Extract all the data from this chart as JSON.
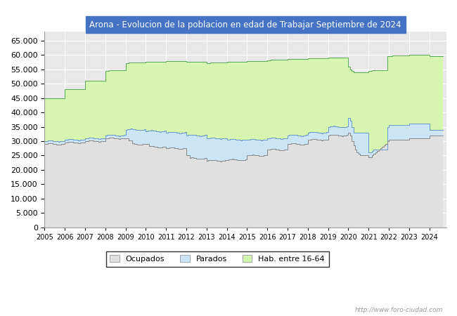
{
  "title": "Arona - Evolucion de la poblacion en edad de Trabajar Septiembre de 2024",
  "title_bg": "#4472c4",
  "title_color": "white",
  "ylim": [
    0,
    68000
  ],
  "yticks": [
    0,
    5000,
    10000,
    15000,
    20000,
    25000,
    30000,
    35000,
    40000,
    45000,
    50000,
    55000,
    60000,
    65000
  ],
  "color_hab": "#d6f5b0",
  "color_parados": "#cce5f5",
  "color_ocupados": "#e0e0e0",
  "color_line_hab": "#55aa55",
  "color_line_parados": "#6699cc",
  "color_line_ocupados": "#888888",
  "plot_bg": "#e8e8e8",
  "grid_color": "#ffffff",
  "legend_labels": [
    "Ocupados",
    "Parados",
    "Hab. entre 16-64"
  ],
  "watermark": "http://www.foro-ciudad.com",
  "hab_16_64": [
    44800,
    44800,
    44900,
    44900,
    44900,
    44900,
    44900,
    44900,
    44900,
    44900,
    44900,
    44900,
    48000,
    48000,
    48100,
    48100,
    48100,
    48100,
    48100,
    48100,
    48100,
    48100,
    48100,
    48100,
    51000,
    51000,
    51100,
    51100,
    51100,
    51100,
    51100,
    51100,
    51100,
    51100,
    51100,
    51100,
    54500,
    54500,
    54600,
    54600,
    54600,
    54600,
    54600,
    54600,
    54600,
    54600,
    54600,
    54600,
    57200,
    57200,
    57300,
    57300,
    57300,
    57300,
    57300,
    57300,
    57300,
    57300,
    57300,
    57300,
    57500,
    57500,
    57600,
    57600,
    57600,
    57600,
    57600,
    57600,
    57600,
    57600,
    57600,
    57600,
    57800,
    57800,
    57900,
    57900,
    57900,
    57900,
    57900,
    57900,
    57900,
    57900,
    57900,
    57900,
    57500,
    57500,
    57600,
    57600,
    57600,
    57600,
    57600,
    57600,
    57600,
    57600,
    57600,
    57600,
    57200,
    57200,
    57300,
    57300,
    57300,
    57300,
    57300,
    57300,
    57300,
    57300,
    57300,
    57300,
    57500,
    57500,
    57600,
    57600,
    57600,
    57600,
    57600,
    57600,
    57600,
    57600,
    57600,
    57600,
    57800,
    57800,
    57900,
    57900,
    57900,
    57900,
    57900,
    57900,
    57900,
    57900,
    57900,
    57900,
    58200,
    58200,
    58300,
    58300,
    58300,
    58300,
    58300,
    58300,
    58300,
    58300,
    58300,
    58300,
    58500,
    58500,
    58600,
    58600,
    58600,
    58600,
    58600,
    58600,
    58600,
    58600,
    58600,
    58600,
    58800,
    58800,
    58900,
    58900,
    58900,
    58900,
    58900,
    58900,
    58900,
    58900,
    58900,
    58900,
    59000,
    59000,
    59100,
    59100,
    59100,
    59100,
    59100,
    59100,
    59100,
    59100,
    59100,
    59100,
    56000,
    55000,
    54500,
    54000,
    54000,
    54000,
    54000,
    54000,
    54000,
    54000,
    54000,
    54000,
    54500,
    54500,
    54600,
    54600,
    54600,
    54600,
    54600,
    54600,
    54600,
    54600,
    54600,
    59500,
    59600,
    59600,
    59700,
    59700,
    59700,
    59700,
    59700,
    59700,
    59700,
    59700,
    59700,
    59700,
    60000,
    60000,
    60100,
    60100,
    60100,
    60100,
    60100,
    60100,
    60100,
    60100,
    60100,
    60100,
    59500,
    59500,
    59600,
    59600,
    59600,
    59600,
    59600,
    59600,
    59600
  ],
  "parados": [
    30000,
    30100,
    30200,
    30300,
    30200,
    30100,
    30000,
    29900,
    29800,
    29900,
    30000,
    30100,
    30500,
    30600,
    30700,
    30800,
    30700,
    30600,
    30500,
    30400,
    30300,
    30400,
    30500,
    30600,
    31000,
    31100,
    31200,
    31300,
    31200,
    31100,
    31000,
    30900,
    30800,
    30900,
    31000,
    31100,
    32000,
    32100,
    32200,
    32300,
    32200,
    32100,
    32000,
    31900,
    31800,
    31900,
    32000,
    32100,
    34000,
    34100,
    34200,
    34300,
    34200,
    34100,
    34000,
    33900,
    33800,
    33900,
    34000,
    34100,
    33500,
    33600,
    33700,
    33800,
    33700,
    33600,
    33500,
    33400,
    33300,
    33400,
    33500,
    33600,
    33000,
    33100,
    33200,
    33300,
    33200,
    33100,
    33000,
    32900,
    32800,
    32900,
    33000,
    33100,
    32000,
    32100,
    32200,
    32300,
    32200,
    32100,
    32000,
    31900,
    31800,
    31900,
    32000,
    32100,
    31000,
    31100,
    31200,
    31300,
    31200,
    31100,
    31000,
    30900,
    30800,
    30900,
    31000,
    31100,
    30500,
    30600,
    30700,
    30800,
    30700,
    30600,
    30500,
    30400,
    30300,
    30400,
    30500,
    30600,
    30500,
    30600,
    30700,
    30800,
    30700,
    30600,
    30500,
    30400,
    30300,
    30400,
    30500,
    30600,
    31000,
    31100,
    31200,
    31300,
    31200,
    31100,
    31000,
    30900,
    30800,
    30900,
    31000,
    31100,
    32000,
    32100,
    32200,
    32300,
    32200,
    32100,
    32000,
    31900,
    31800,
    31900,
    32000,
    32100,
    33000,
    33100,
    33200,
    33300,
    33200,
    33100,
    33000,
    32900,
    32800,
    32900,
    33000,
    33100,
    35000,
    35100,
    35200,
    35300,
    35200,
    35100,
    35000,
    34900,
    34800,
    34900,
    35000,
    35100,
    38000,
    37000,
    35000,
    33000,
    33000,
    33000,
    33000,
    33000,
    33000,
    33000,
    33000,
    33000,
    26000,
    26000,
    26500,
    27000,
    27000,
    27000,
    27000,
    27000,
    27000,
    27000,
    27000,
    35000,
    35500,
    35500,
    35500,
    35500,
    35500,
    35500,
    35500,
    35500,
    35500,
    35500,
    35500,
    35500,
    36000,
    36000,
    36000,
    36000,
    36000,
    36000,
    36000,
    36000,
    36000,
    36000,
    36000,
    36000,
    34000,
    34000,
    34000,
    34000,
    34000,
    34000,
    34000,
    34000,
    34000
  ],
  "ocupados": [
    29000,
    29100,
    29200,
    29300,
    29200,
    29100,
    29000,
    28900,
    28800,
    28900,
    29000,
    29100,
    29500,
    29600,
    29700,
    29800,
    29700,
    29600,
    29500,
    29400,
    29300,
    29400,
    29500,
    29600,
    30000,
    30100,
    30200,
    30300,
    30200,
    30100,
    30000,
    29900,
    29800,
    29900,
    30000,
    30100,
    31000,
    31100,
    31200,
    31300,
    31200,
    31100,
    31000,
    30900,
    30800,
    30900,
    31000,
    31100,
    31000,
    31100,
    30200,
    30300,
    29200,
    29100,
    29000,
    28900,
    28800,
    28900,
    29000,
    29100,
    29000,
    29100,
    28200,
    28300,
    28200,
    28100,
    28000,
    27900,
    27800,
    27900,
    28000,
    28100,
    27500,
    27600,
    27700,
    27800,
    27700,
    27600,
    27500,
    27400,
    27300,
    27400,
    27500,
    27600,
    25000,
    25100,
    24200,
    24300,
    24200,
    24100,
    24000,
    23900,
    23800,
    23900,
    24000,
    24100,
    23200,
    23300,
    23400,
    23500,
    23400,
    23300,
    23200,
    23100,
    23000,
    23100,
    23200,
    23300,
    23500,
    23600,
    23700,
    23800,
    23700,
    23600,
    23500,
    23400,
    23300,
    23400,
    23500,
    23600,
    25000,
    25100,
    25200,
    25300,
    25200,
    25100,
    25000,
    24900,
    24800,
    24900,
    25000,
    25100,
    27000,
    27100,
    27200,
    27300,
    27200,
    27100,
    27000,
    26900,
    26800,
    26900,
    27000,
    27100,
    29000,
    29100,
    29200,
    29300,
    29200,
    29100,
    29000,
    28900,
    28800,
    28900,
    29000,
    29100,
    30500,
    30600,
    30700,
    30800,
    30700,
    30600,
    30500,
    30400,
    30300,
    30400,
    30500,
    30600,
    32000,
    32100,
    32200,
    32300,
    32200,
    32100,
    32000,
    31900,
    31800,
    31900,
    32000,
    32100,
    33000,
    32000,
    30000,
    28500,
    27000,
    26000,
    25500,
    25000,
    25000,
    25000,
    25000,
    25000,
    24500,
    24500,
    25000,
    25500,
    26000,
    26500,
    27000,
    27500,
    28000,
    28500,
    29000,
    30000,
    30500,
    30500,
    30500,
    30500,
    30500,
    30500,
    30500,
    30500,
    30500,
    30500,
    30500,
    30500,
    31000,
    31000,
    31000,
    31000,
    31000,
    31000,
    31000,
    31000,
    31000,
    31000,
    31000,
    31000,
    32000,
    32000,
    32000,
    32000,
    32000,
    32000,
    32000,
    32000,
    32000
  ]
}
